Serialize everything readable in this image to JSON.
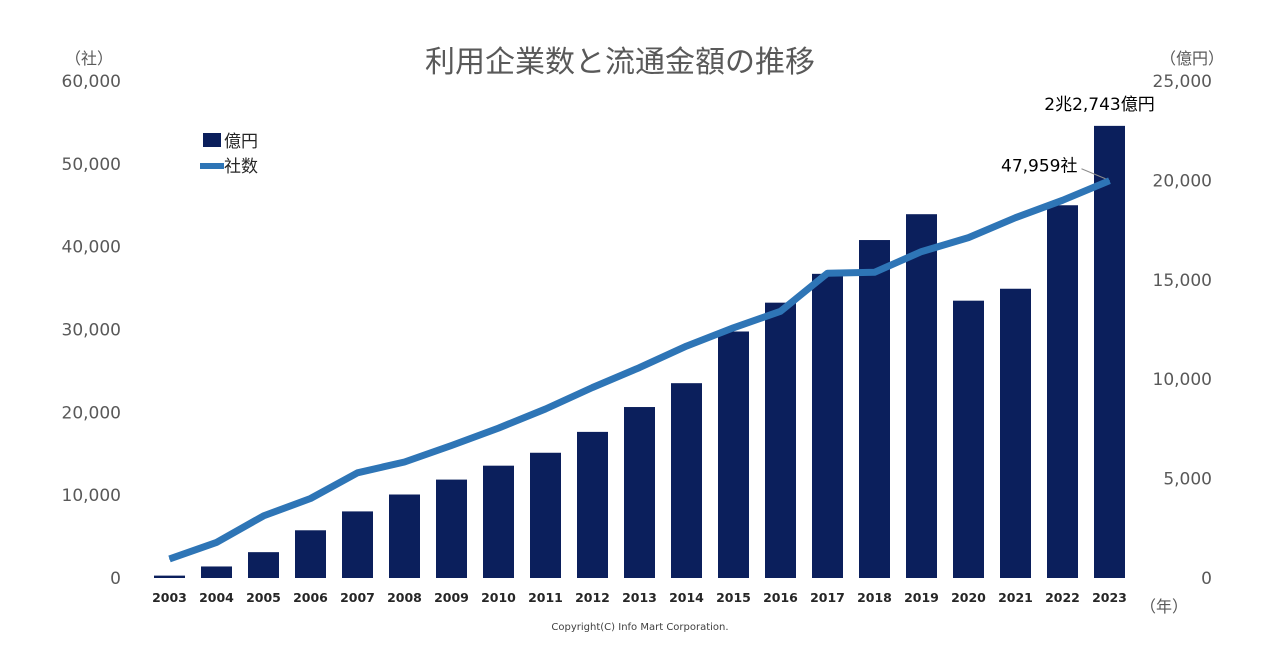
{
  "chart_data": {
    "type": "bar+line",
    "title": "利用企業数と流通金額の推移",
    "categories": [
      "2003",
      "2004",
      "2005",
      "2006",
      "2007",
      "2008",
      "2009",
      "2010",
      "2011",
      "2012",
      "2013",
      "2014",
      "2015",
      "2016",
      "2017",
      "2018",
      "2019",
      "2020",
      "2021",
      "2022",
      "2023"
    ],
    "left_axis": {
      "unit_label": "（社）",
      "ylim": [
        0,
        60000
      ],
      "ticks": [
        "0",
        "10,000",
        "20,000",
        "30,000",
        "40,000",
        "50,000",
        "60,000"
      ]
    },
    "right_axis": {
      "unit_label": "（億円）",
      "ylim": [
        0,
        25000
      ],
      "ticks": [
        "0",
        "5,000",
        "10,000",
        "15,000",
        "20,000",
        "25,000"
      ]
    },
    "x_unit_label": "（年）",
    "series": [
      {
        "name": "億円",
        "kind": "bar",
        "axis": "right",
        "color": "#0b1f5c",
        "values": [
          120,
          580,
          1300,
          2400,
          3350,
          4200,
          4950,
          5650,
          6300,
          7350,
          8600,
          9800,
          12400,
          13850,
          15300,
          17000,
          18300,
          13950,
          14550,
          18750,
          22743
        ]
      },
      {
        "name": "社数",
        "kind": "line",
        "axis": "left",
        "color": "#2e75b6",
        "values": [
          2300,
          4300,
          7500,
          9600,
          12700,
          14000,
          16000,
          18100,
          20400,
          23000,
          25400,
          28000,
          30200,
          32200,
          36800,
          36900,
          39400,
          41100,
          43500,
          45600,
          47959
        ]
      }
    ],
    "annotations": [
      {
        "text": "2兆2,743億円",
        "target": "bar-2023"
      },
      {
        "text": "47,959社",
        "target": "line-2023"
      }
    ],
    "legend_position": "top-left"
  },
  "copyright": "Copyright(C) Info Mart Corporation."
}
